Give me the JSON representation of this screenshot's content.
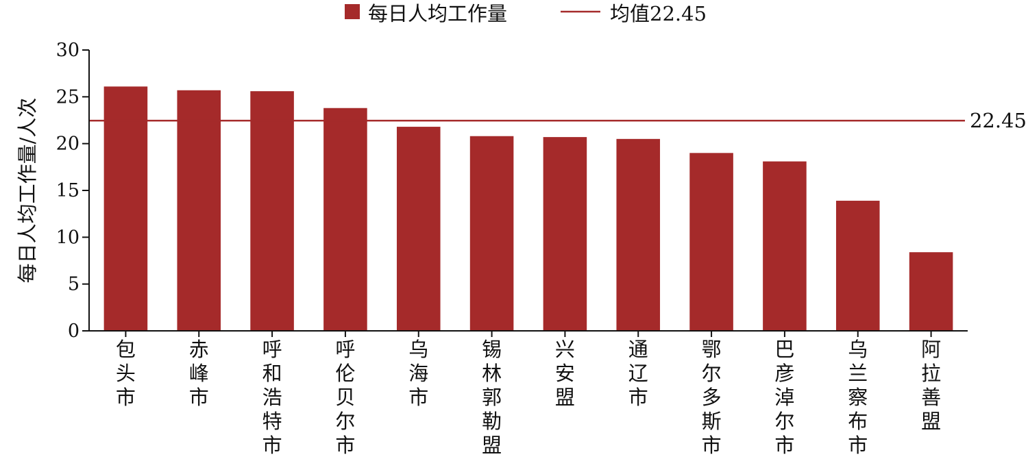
{
  "chart_data": {
    "type": "bar",
    "categories": [
      "包头市",
      "赤峰市",
      "呼和浩特市",
      "呼伦贝尔市",
      "乌海市",
      "锡林郭勒盟",
      "兴安盟",
      "通辽市",
      "鄂尔多斯市",
      "巴彦淖尔市",
      "乌兰察布市",
      "阿拉善盟"
    ],
    "series": [
      {
        "name": "每日人均工作量",
        "values": [
          26.1,
          25.7,
          25.6,
          23.8,
          21.8,
          20.8,
          20.7,
          20.5,
          19.0,
          18.1,
          13.9,
          8.4
        ]
      }
    ],
    "reference_line": {
      "name": "均值22.45",
      "value": 22.45,
      "label": "22.45"
    },
    "ylabel": "每日人均工作量/人次",
    "ylim": [
      0,
      30
    ],
    "yticks": [
      0,
      5,
      10,
      15,
      20,
      25,
      30
    ],
    "grid": false,
    "legend_position": "top-center",
    "colors": {
      "bar": "#A52A2A",
      "mean_line": "#A52A2A",
      "axis": "#111111"
    }
  }
}
